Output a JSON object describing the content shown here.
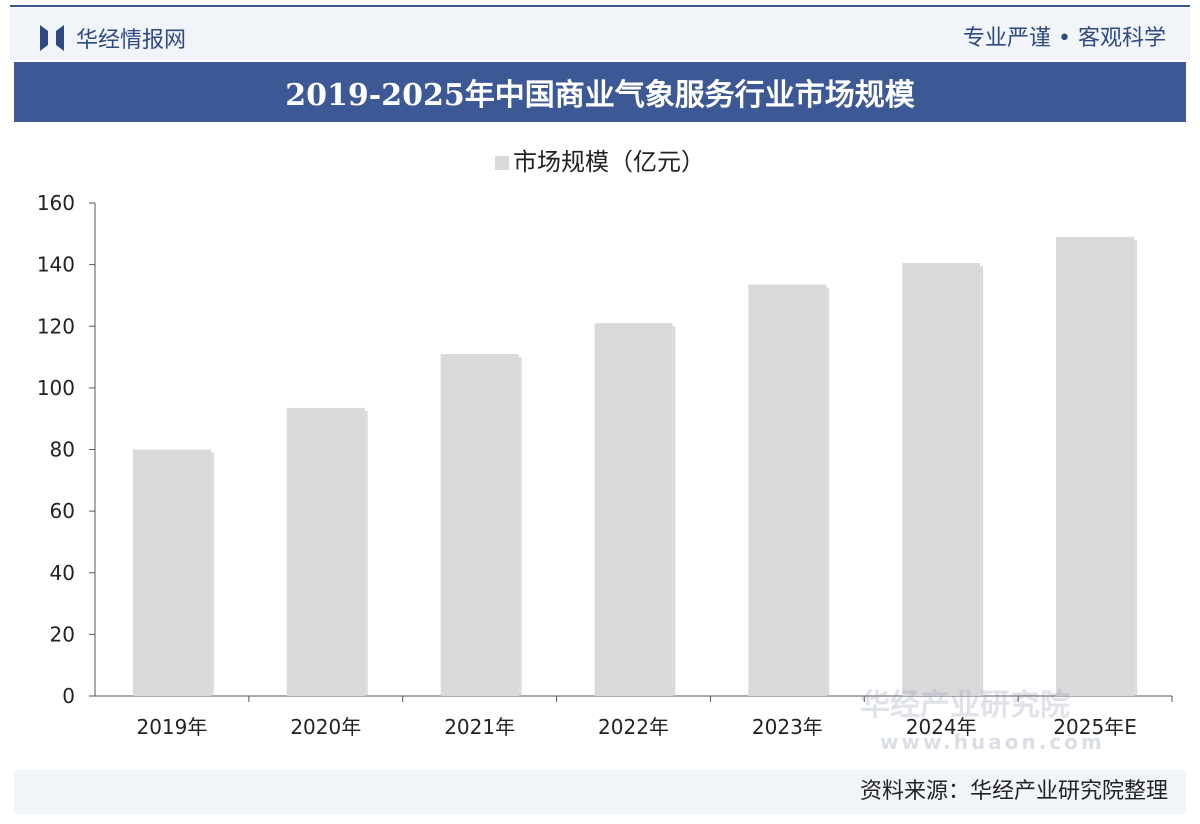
{
  "header": {
    "logo_text": "华经情报网",
    "slogan": "专业严谨 • 客观科学"
  },
  "title": "2019-2025年中国商业气象服务行业市场规模",
  "footer": {
    "source": "资料来源：华经产业研究院整理"
  },
  "watermark": {
    "name": "华经产业研究院",
    "url": "www.huaon.com"
  },
  "colors": {
    "title_bar": "#3d5995",
    "bar": "#d9d9d9"
  },
  "chart_data": {
    "type": "bar",
    "title": "2019-2025年中国商业气象服务行业市场规模",
    "categories": [
      "2019年",
      "2020年",
      "2021年",
      "2022年",
      "2023年",
      "2024年",
      "2025年E"
    ],
    "series": [
      {
        "name": "市场规模（亿元）",
        "values": [
          80,
          93.5,
          111,
          121,
          133.5,
          140.5,
          149
        ]
      }
    ],
    "yticks": [
      "0",
      "20",
      "40",
      "60",
      "80",
      "100",
      "120",
      "140",
      "160"
    ],
    "ylim": [
      0,
      160
    ],
    "grid": false,
    "legend": "top"
  }
}
